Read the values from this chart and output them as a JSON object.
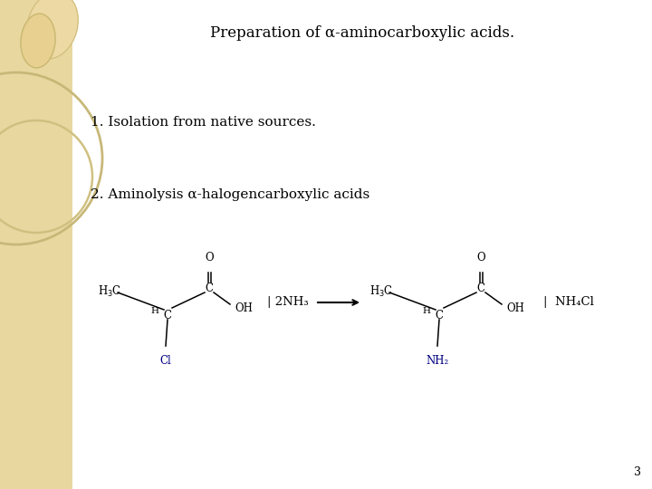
{
  "title": "Preparation of α-aminocarboxylic acids.",
  "line1": "1. Isolation from native sources.",
  "line2": "2. Aminolysis α-halogencarboxylic acids",
  "reagent": "| 2NH₃",
  "product_byproduct": "|  NH₄Cl",
  "bg_color": "#FFFFFF",
  "sidebar_color": "#E8D8A0",
  "text_color": "#000000",
  "blue_color": "#000080",
  "page_number": "3",
  "title_fontsize": 12,
  "text_fontsize": 11,
  "chem_fontsize": 8.5
}
